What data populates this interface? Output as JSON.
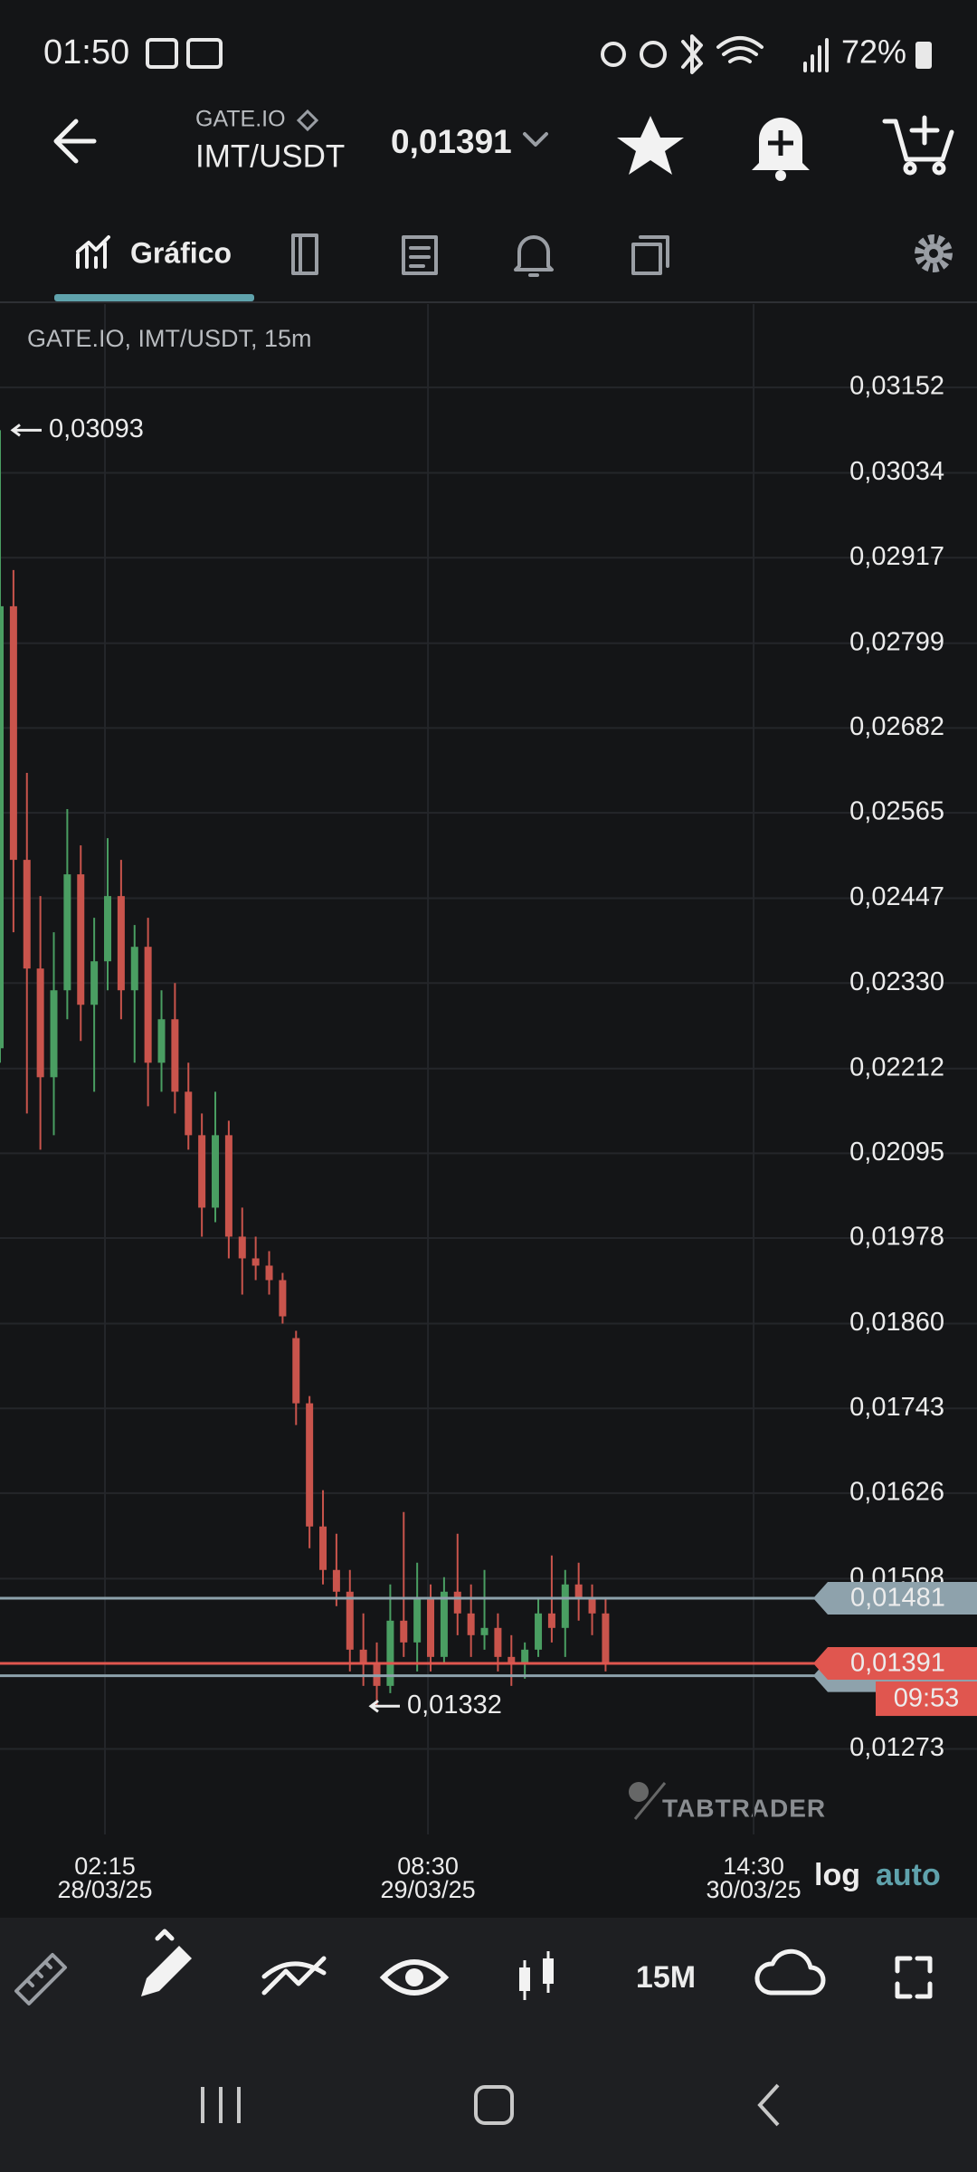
{
  "status_bar": {
    "time": "01:50",
    "battery": "72%"
  },
  "header": {
    "exchange": "GATE.IO",
    "pair": "IMT/USDT",
    "price": "0,01391"
  },
  "tabs": {
    "active": "Gráfico"
  },
  "chart_data": {
    "type": "candlestick",
    "title": "GATE.IO, IMT/USDT, 15m",
    "up_color": "#4a9e62",
    "down_color": "#c9544c",
    "grid": true,
    "x": [
      0,
      5,
      10,
      15,
      20,
      25,
      30,
      35,
      40,
      45,
      50,
      55,
      60,
      65,
      70,
      75,
      80,
      85,
      90,
      95,
      100,
      105,
      110,
      115,
      120,
      125,
      130,
      135,
      140,
      145,
      150,
      155,
      160,
      165,
      170,
      175,
      180,
      185,
      190,
      195,
      200,
      205,
      210,
      215,
      220,
      225
    ],
    "open": [
      0.0224,
      0.0285,
      0.025,
      0.0235,
      0.022,
      0.0232,
      0.0248,
      0.023,
      0.0236,
      0.0245,
      0.0232,
      0.0238,
      0.0222,
      0.0228,
      0.0218,
      0.0212,
      0.0202,
      0.0212,
      0.0198,
      0.0195,
      0.0194,
      0.0192,
      0.0184,
      0.0175,
      0.0158,
      0.0152,
      0.0149,
      0.0141,
      0.0139,
      0.0136,
      0.0145,
      0.0142,
      0.0148,
      0.014,
      0.0149,
      0.0146,
      0.0143,
      0.0144,
      0.014,
      0.0139,
      0.0141,
      0.0146,
      0.0144,
      0.015,
      0.0148,
      0.0146
    ],
    "high": [
      0.03093,
      0.029,
      0.0262,
      0.0245,
      0.024,
      0.0257,
      0.0252,
      0.0242,
      0.0253,
      0.025,
      0.0241,
      0.0242,
      0.0232,
      0.0233,
      0.0222,
      0.0215,
      0.0218,
      0.0214,
      0.0202,
      0.0198,
      0.0196,
      0.0193,
      0.0185,
      0.0176,
      0.0163,
      0.0157,
      0.0152,
      0.0146,
      0.0142,
      0.015,
      0.016,
      0.0153,
      0.015,
      0.0151,
      0.0157,
      0.015,
      0.0152,
      0.0146,
      0.0143,
      0.0142,
      0.0148,
      0.0154,
      0.0152,
      0.0153,
      0.015,
      0.0148
    ],
    "low": [
      0.0222,
      0.024,
      0.0215,
      0.021,
      0.0212,
      0.0228,
      0.0225,
      0.0218,
      0.0232,
      0.0228,
      0.0222,
      0.0216,
      0.0218,
      0.0215,
      0.021,
      0.0198,
      0.02,
      0.0195,
      0.019,
      0.0192,
      0.019,
      0.0186,
      0.0172,
      0.0155,
      0.015,
      0.0147,
      0.0138,
      0.0136,
      0.01332,
      0.0135,
      0.014,
      0.0138,
      0.0138,
      0.0139,
      0.0143,
      0.014,
      0.0141,
      0.0138,
      0.0136,
      0.0137,
      0.014,
      0.0142,
      0.014,
      0.0145,
      0.0143,
      0.0138
    ],
    "close": [
      0.0285,
      0.025,
      0.0235,
      0.022,
      0.0232,
      0.0248,
      0.023,
      0.0236,
      0.0245,
      0.0232,
      0.0238,
      0.0222,
      0.0228,
      0.0218,
      0.0212,
      0.0202,
      0.0212,
      0.0198,
      0.0195,
      0.0194,
      0.0192,
      0.0187,
      0.0175,
      0.0158,
      0.0152,
      0.0149,
      0.0141,
      0.0139,
      0.0136,
      0.0145,
      0.0142,
      0.0148,
      0.014,
      0.0149,
      0.0146,
      0.0143,
      0.0144,
      0.014,
      0.0139,
      0.0141,
      0.0146,
      0.0144,
      0.015,
      0.0148,
      0.0146,
      0.01391
    ],
    "xlim": [
      0,
      363
    ],
    "xticks": [
      {
        "value": 39,
        "label": "02:15"
      },
      {
        "value": 159,
        "label": "08:30"
      },
      {
        "value": 280,
        "label": "14:30"
      }
    ],
    "xtick_dates": [
      "28/03/25",
      "29/03/25",
      "30/03/25"
    ],
    "ylim": [
      0.01155,
      0.03267
    ],
    "yticks": [
      {
        "value": 0.03152,
        "label": "0,03152"
      },
      {
        "value": 0.03034,
        "label": "0,03034"
      },
      {
        "value": 0.02917,
        "label": "0,02917"
      },
      {
        "value": 0.02799,
        "label": "0,02799"
      },
      {
        "value": 0.02682,
        "label": "0,02682"
      },
      {
        "value": 0.02565,
        "label": "0,02565"
      },
      {
        "value": 0.02447,
        "label": "0,02447"
      },
      {
        "value": 0.0233,
        "label": "0,02330"
      },
      {
        "value": 0.02212,
        "label": "0,02212"
      },
      {
        "value": 0.02095,
        "label": "0,02095"
      },
      {
        "value": 0.01978,
        "label": "0,01978"
      },
      {
        "value": 0.0186,
        "label": "0,01860"
      },
      {
        "value": 0.01743,
        "label": "0,01743"
      },
      {
        "value": 0.01626,
        "label": "0,01626"
      },
      {
        "value": 0.01508,
        "label": "0,01508"
      },
      {
        "value": 0.01273,
        "label": "0,01273"
      }
    ],
    "price_lines": [
      {
        "value": 0.01374,
        "color": "#8ea2ac"
      },
      {
        "value": 0.01481,
        "label": "0,01481",
        "color": "#8ea2ac"
      },
      {
        "value": 0.01391,
        "label": "0,01391",
        "color": "#e0564f",
        "countdown": "09:53"
      }
    ],
    "high_marker": {
      "value": 0.03093,
      "label": "0,03093"
    },
    "low_marker": {
      "value": 0.01332,
      "label": "0,01332"
    },
    "watermark": "TABTRADER",
    "scale_buttons": [
      "log",
      "auto"
    ]
  },
  "toolbar": {
    "interval": "15M"
  }
}
